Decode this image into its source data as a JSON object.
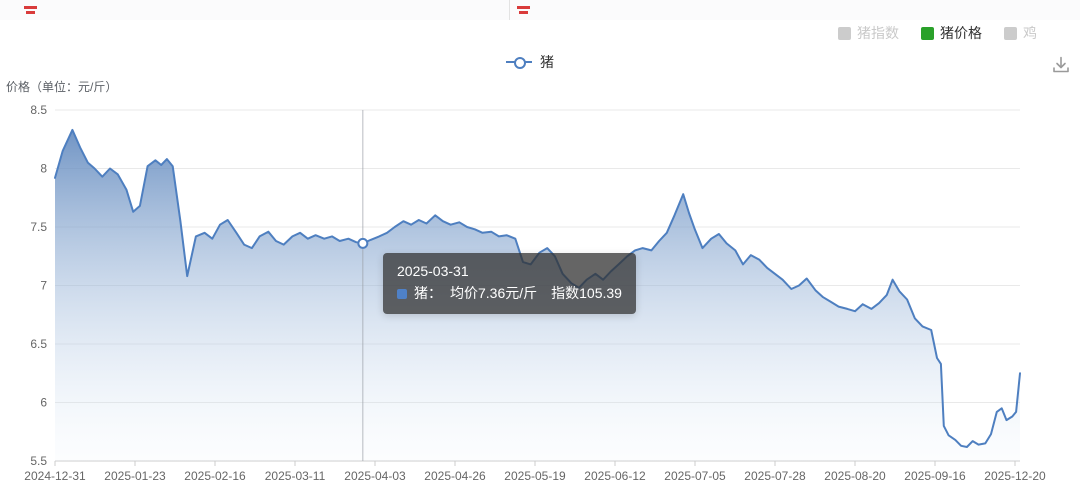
{
  "y_axis_title": "价格（单位：元/斤）",
  "series_legend": {
    "label": "猪"
  },
  "legend_top": {
    "active_color": "#2aa12a",
    "inactive_color": "#c9c9c9",
    "items": [
      {
        "label": "猪指数",
        "active": false
      },
      {
        "label": "猪价格",
        "active": true
      },
      {
        "label": "鸡",
        "active": false
      }
    ]
  },
  "tooltip": {
    "date": "2025-03-31",
    "series_label": "猪：",
    "price_text": "均价7.36元/斤",
    "index_text": "指数105.39",
    "marker_color": "#4f81c7"
  },
  "chart_data": {
    "type": "area",
    "title": "",
    "ylabel": "价格（单位：元/斤）",
    "ylim": [
      5.5,
      8.5
    ],
    "y_ticks": [
      8.5,
      8,
      7.5,
      7,
      6.5,
      6,
      5.5
    ],
    "x_tick_labels": [
      "2024-12-31",
      "2025-01-23",
      "2025-02-16",
      "2025-03-11",
      "2025-04-03",
      "2025-04-26",
      "2025-05-19",
      "2025-06-12",
      "2025-07-05",
      "2025-07-28",
      "2025-08-20",
      "2025-09-16",
      "2025-12-20"
    ],
    "grid": true,
    "legend_position": "top",
    "hover": {
      "f": 0.319,
      "value": 7.36,
      "date": "2025-03-31",
      "index": 105.39
    },
    "colors": {
      "line": "#4e7fc0",
      "area_top": "rgba(88,130,186,0.85)",
      "area_bottom": "rgba(230,240,250,0.12)",
      "grid": "#e9e9e9",
      "axis": "#cccccc",
      "tick_text": "#666666",
      "pointer": "#9aa0a6"
    },
    "series": [
      {
        "name": "猪",
        "points": [
          [
            0.0,
            7.92
          ],
          [
            0.008,
            8.15
          ],
          [
            0.018,
            8.33
          ],
          [
            0.026,
            8.18
          ],
          [
            0.034,
            8.05
          ],
          [
            0.041,
            8.0
          ],
          [
            0.049,
            7.93
          ],
          [
            0.057,
            8.0
          ],
          [
            0.065,
            7.95
          ],
          [
            0.074,
            7.82
          ],
          [
            0.081,
            7.63
          ],
          [
            0.088,
            7.68
          ],
          [
            0.096,
            8.02
          ],
          [
            0.104,
            8.07
          ],
          [
            0.11,
            8.03
          ],
          [
            0.116,
            8.08
          ],
          [
            0.122,
            8.02
          ],
          [
            0.13,
            7.55
          ],
          [
            0.137,
            7.08
          ],
          [
            0.146,
            7.42
          ],
          [
            0.155,
            7.45
          ],
          [
            0.163,
            7.4
          ],
          [
            0.171,
            7.52
          ],
          [
            0.179,
            7.56
          ],
          [
            0.188,
            7.45
          ],
          [
            0.196,
            7.35
          ],
          [
            0.204,
            7.32
          ],
          [
            0.212,
            7.42
          ],
          [
            0.221,
            7.46
          ],
          [
            0.229,
            7.38
          ],
          [
            0.237,
            7.35
          ],
          [
            0.246,
            7.42
          ],
          [
            0.254,
            7.45
          ],
          [
            0.262,
            7.4
          ],
          [
            0.27,
            7.43
          ],
          [
            0.279,
            7.4
          ],
          [
            0.287,
            7.42
          ],
          [
            0.295,
            7.38
          ],
          [
            0.304,
            7.4
          ],
          [
            0.312,
            7.37
          ],
          [
            0.319,
            7.36
          ],
          [
            0.327,
            7.39
          ],
          [
            0.336,
            7.42
          ],
          [
            0.344,
            7.45
          ],
          [
            0.352,
            7.5
          ],
          [
            0.361,
            7.55
          ],
          [
            0.369,
            7.52
          ],
          [
            0.377,
            7.56
          ],
          [
            0.385,
            7.53
          ],
          [
            0.394,
            7.6
          ],
          [
            0.402,
            7.55
          ],
          [
            0.41,
            7.52
          ],
          [
            0.419,
            7.54
          ],
          [
            0.427,
            7.5
          ],
          [
            0.435,
            7.48
          ],
          [
            0.443,
            7.45
          ],
          [
            0.452,
            7.46
          ],
          [
            0.46,
            7.42
          ],
          [
            0.468,
            7.43
          ],
          [
            0.477,
            7.4
          ],
          [
            0.485,
            7.2
          ],
          [
            0.493,
            7.18
          ],
          [
            0.502,
            7.28
          ],
          [
            0.51,
            7.32
          ],
          [
            0.518,
            7.25
          ],
          [
            0.526,
            7.1
          ],
          [
            0.535,
            7.02
          ],
          [
            0.543,
            6.98
          ],
          [
            0.551,
            7.05
          ],
          [
            0.56,
            7.1
          ],
          [
            0.568,
            7.05
          ],
          [
            0.576,
            7.12
          ],
          [
            0.584,
            7.18
          ],
          [
            0.593,
            7.25
          ],
          [
            0.601,
            7.3
          ],
          [
            0.609,
            7.32
          ],
          [
            0.618,
            7.3
          ],
          [
            0.626,
            7.38
          ],
          [
            0.634,
            7.45
          ],
          [
            0.642,
            7.6
          ],
          [
            0.651,
            7.78
          ],
          [
            0.657,
            7.62
          ],
          [
            0.663,
            7.48
          ],
          [
            0.671,
            7.32
          ],
          [
            0.68,
            7.4
          ],
          [
            0.688,
            7.44
          ],
          [
            0.696,
            7.36
          ],
          [
            0.705,
            7.3
          ],
          [
            0.713,
            7.18
          ],
          [
            0.721,
            7.26
          ],
          [
            0.73,
            7.22
          ],
          [
            0.738,
            7.15
          ],
          [
            0.746,
            7.1
          ],
          [
            0.754,
            7.05
          ],
          [
            0.763,
            6.97
          ],
          [
            0.771,
            7.0
          ],
          [
            0.779,
            7.06
          ],
          [
            0.788,
            6.96
          ],
          [
            0.796,
            6.9
          ],
          [
            0.804,
            6.86
          ],
          [
            0.812,
            6.82
          ],
          [
            0.821,
            6.8
          ],
          [
            0.829,
            6.78
          ],
          [
            0.837,
            6.84
          ],
          [
            0.846,
            6.8
          ],
          [
            0.854,
            6.85
          ],
          [
            0.862,
            6.92
          ],
          [
            0.868,
            7.05
          ],
          [
            0.875,
            6.95
          ],
          [
            0.883,
            6.88
          ],
          [
            0.891,
            6.72
          ],
          [
            0.899,
            6.65
          ],
          [
            0.908,
            6.62
          ],
          [
            0.914,
            6.38
          ],
          [
            0.918,
            6.33
          ],
          [
            0.921,
            5.8
          ],
          [
            0.926,
            5.72
          ],
          [
            0.933,
            5.68
          ],
          [
            0.939,
            5.63
          ],
          [
            0.945,
            5.62
          ],
          [
            0.951,
            5.67
          ],
          [
            0.957,
            5.64
          ],
          [
            0.964,
            5.65
          ],
          [
            0.97,
            5.73
          ],
          [
            0.976,
            5.92
          ],
          [
            0.981,
            5.95
          ],
          [
            0.986,
            5.85
          ],
          [
            0.992,
            5.88
          ],
          [
            0.996,
            5.92
          ],
          [
            1.0,
            6.25
          ]
        ]
      }
    ]
  }
}
